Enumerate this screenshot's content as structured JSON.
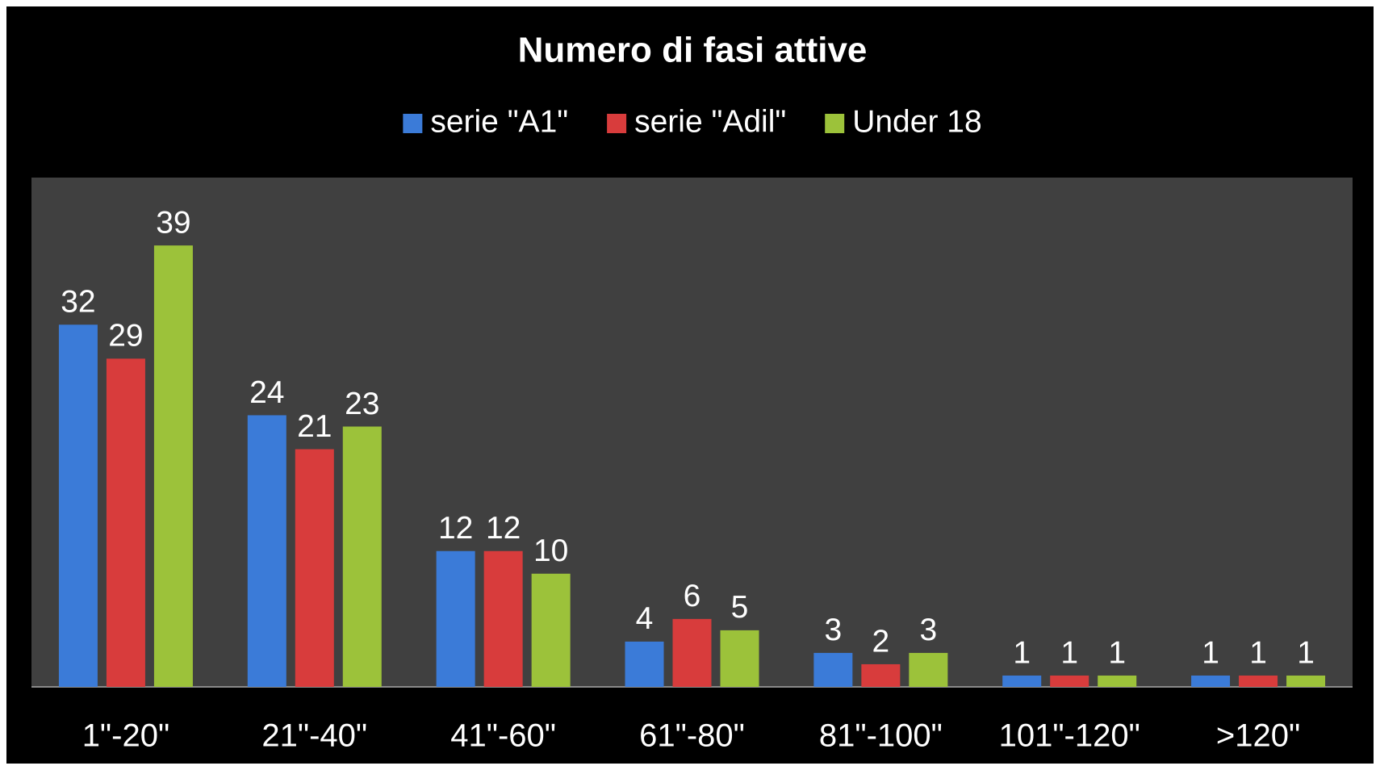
{
  "chart_data": {
    "type": "bar",
    "title": "Numero di fasi attive",
    "categories": [
      "1\"-20\"",
      "21\"-40\"",
      "41\"-60\"",
      "61\"-80\"",
      "81\"-100\"",
      "101\"-120\"",
      ">120\""
    ],
    "series": [
      {
        "name": "serie \"A1\"",
        "color": "#3b7bd8",
        "values": [
          32,
          24,
          12,
          4,
          3,
          1,
          1
        ]
      },
      {
        "name": "serie \"Adil\"",
        "color": "#d83c3c",
        "values": [
          29,
          21,
          12,
          6,
          2,
          1,
          1
        ]
      },
      {
        "name": "Under 18",
        "color": "#9cc23a",
        "values": [
          39,
          23,
          10,
          5,
          3,
          1,
          1
        ]
      }
    ],
    "ylim": [
      0,
      45
    ]
  }
}
